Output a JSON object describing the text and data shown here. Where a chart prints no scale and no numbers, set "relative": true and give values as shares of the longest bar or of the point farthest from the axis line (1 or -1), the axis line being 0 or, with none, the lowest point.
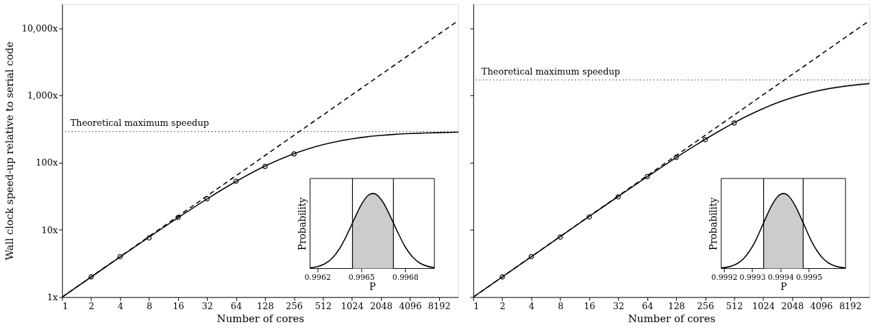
{
  "chart_data": [
    {
      "type": "line",
      "xlabel": "Number of cores",
      "ylabel": "Wall clock speed-up relative to serial code",
      "log": "xy",
      "xlim": [
        1,
        13000
      ],
      "ylim": [
        1,
        23000
      ],
      "xticks": [
        1,
        2,
        4,
        8,
        16,
        32,
        64,
        128,
        256,
        512,
        1024,
        2048,
        4096,
        8192
      ],
      "yticks": [
        {
          "value": 1,
          "label": "1x"
        },
        {
          "value": 10,
          "label": "10x"
        },
        {
          "value": 100,
          "label": "100x"
        },
        {
          "value": 1000,
          "label": "1,000x"
        },
        {
          "value": 10000,
          "label": "10,000x"
        }
      ],
      "series": [
        {
          "type": "scatter",
          "marker": "circle",
          "color": "#000000",
          "x": [
            2,
            4,
            8,
            16,
            32,
            64,
            128,
            256
          ],
          "values": [
            2.0,
            4.0,
            7.6,
            15.3,
            29,
            53,
            88,
            135
          ]
        },
        {
          "color": "#000000",
          "x": [
            1,
            2,
            4,
            8,
            16,
            32,
            64,
            128,
            256,
            362,
            512,
            724,
            1024,
            1448,
            2048,
            2896,
            4096,
            5793,
            8192,
            13000
          ],
          "values": [
            1,
            1.99,
            3.96,
            7.81,
            15.2,
            28.9,
            52.6,
            89.0,
            136,
            161,
            185,
            207,
            226,
            242,
            254,
            264,
            271,
            276,
            280,
            284
          ]
        },
        {
          "type": "line",
          "line_style": "dashed",
          "color": "#000000",
          "x": [
            1,
            13000
          ],
          "values": [
            1,
            13000
          ]
        }
      ],
      "ref_lines": [
        {
          "axis": "y",
          "value": 290,
          "label": "Theoretical maximum speedup",
          "line_style": "dotted",
          "color": "#000000"
        }
      ]
    },
    {
      "type": "line",
      "relative": true,
      "xlabel": "P",
      "ylabel": "Probability",
      "xlim": [
        0.99615,
        0.997
      ],
      "xticks": [
        0.9962,
        0.9965,
        0.9968
      ],
      "series": [
        {
          "type": "area",
          "color": "#cccccc",
          "x": [
            0.99644,
            0.99645,
            0.9965,
            0.99655,
            0.99658,
            0.9966,
            0.99665,
            0.9967,
            0.99672
          ],
          "values": [
            0.61,
            0.65,
            0.85,
            0.98,
            1,
            0.99,
            0.88,
            0.69,
            0.61
          ]
        },
        {
          "color": "#000000",
          "x": [
            0.99615,
            0.9962,
            0.99625,
            0.9963,
            0.99635,
            0.9964,
            0.99645,
            0.9965,
            0.99655,
            0.99658,
            0.9966,
            0.99665,
            0.9967,
            0.99675,
            0.9968,
            0.99685,
            0.9969,
            0.99695,
            0.997
          ],
          "values": [
            0.009,
            0.025,
            0.062,
            0.135,
            0.26,
            0.44,
            0.65,
            0.85,
            0.98,
            1,
            0.99,
            0.88,
            0.69,
            0.48,
            0.29,
            0.155,
            0.073,
            0.031,
            0.011
          ]
        }
      ],
      "ref_lines": [
        {
          "axis": "x",
          "value": 0.99644,
          "color": "#000000"
        },
        {
          "axis": "x",
          "value": 0.99672,
          "color": "#000000"
        }
      ]
    },
    {
      "type": "line",
      "xlabel": "Number of cores",
      "log": "xy",
      "xlim": [
        1,
        13000
      ],
      "ylim": [
        1,
        23000
      ],
      "tick_labels": "x",
      "xticks": [
        1,
        2,
        4,
        8,
        16,
        32,
        64,
        128,
        256,
        512,
        1024,
        2048,
        4096,
        8192
      ],
      "yticks": [
        {
          "value": 1,
          "label": null
        },
        {
          "value": 10,
          "label": null
        },
        {
          "value": 100,
          "label": null
        },
        {
          "value": 1000,
          "label": null
        },
        {
          "value": 10000,
          "label": null
        }
      ],
      "series": [
        {
          "type": "scatter",
          "marker": "circle",
          "color": "#000000",
          "x": [
            2,
            4,
            8,
            16,
            32,
            64,
            128,
            256,
            512
          ],
          "values": [
            2.0,
            4.0,
            7.8,
            15.6,
            31,
            62,
            120,
            220,
            390
          ]
        },
        {
          "color": "#000000",
          "x": [
            1,
            2,
            4,
            8,
            16,
            32,
            64,
            128,
            256,
            362,
            512,
            724,
            1024,
            1448,
            2048,
            2896,
            4096,
            5793,
            8192,
            13000
          ],
          "values": [
            1,
            2.0,
            3.99,
            7.97,
            15.86,
            31.4,
            61.7,
            119.1,
            222.5,
            298,
            393,
            508,
            638,
            781,
            928,
            1070,
            1199,
            1311,
            1404,
            1499
          ],
          "lower": [
            1,
            2.0,
            3.99,
            7.97,
            15.85,
            31.35,
            61.6,
            118.8,
            221.5,
            296,
            390,
            503,
            630,
            768,
            908,
            1043,
            1163,
            1266,
            1350,
            1435
          ],
          "upper": [
            1,
            2.0,
            3.99,
            7.97,
            15.87,
            31.45,
            61.8,
            119.4,
            223.5,
            300,
            396,
            513,
            646,
            794,
            948,
            1097,
            1235,
            1356,
            1458,
            1563
          ]
        },
        {
          "type": "line",
          "line_style": "dashed",
          "color": "#000000",
          "x": [
            1,
            13000
          ],
          "values": [
            1,
            13000
          ]
        }
      ],
      "ref_lines": [
        {
          "axis": "y",
          "value": 1700,
          "label": "Theoretical maximum speedup",
          "line_style": "dotted",
          "color": "#000000"
        }
      ]
    },
    {
      "type": "line",
      "relative": true,
      "xlabel": "P",
      "ylabel": "Probability",
      "xlim": [
        0.99919,
        0.99963
      ],
      "xticks": [
        0.9992,
        0.9993,
        0.9994,
        0.9995
      ],
      "series": [
        {
          "type": "area",
          "color": "#cccccc",
          "x": [
            0.99934,
            0.99937,
            0.99939,
            0.99941,
            0.99943,
            0.99945,
            0.99948
          ],
          "values": [
            0.61,
            0.85,
            0.96,
            1,
            0.96,
            0.85,
            0.61
          ]
        },
        {
          "color": "#000000",
          "x": [
            0.99919,
            0.99921,
            0.99923,
            0.99925,
            0.99927,
            0.99929,
            0.99931,
            0.99934,
            0.99937,
            0.99939,
            0.99941,
            0.99943,
            0.99945,
            0.99948,
            0.99951,
            0.99953,
            0.99955,
            0.99957,
            0.99959,
            0.99961,
            0.99963
          ],
          "values": [
            0.007,
            0.017,
            0.037,
            0.073,
            0.135,
            0.23,
            0.36,
            0.61,
            0.85,
            0.96,
            1,
            0.96,
            0.85,
            0.61,
            0.36,
            0.23,
            0.135,
            0.073,
            0.037,
            0.017,
            0.007
          ]
        }
      ],
      "ref_lines": [
        {
          "axis": "x",
          "value": 0.99934,
          "color": "#000000"
        },
        {
          "axis": "x",
          "value": 0.99948,
          "color": "#000000"
        }
      ]
    }
  ]
}
